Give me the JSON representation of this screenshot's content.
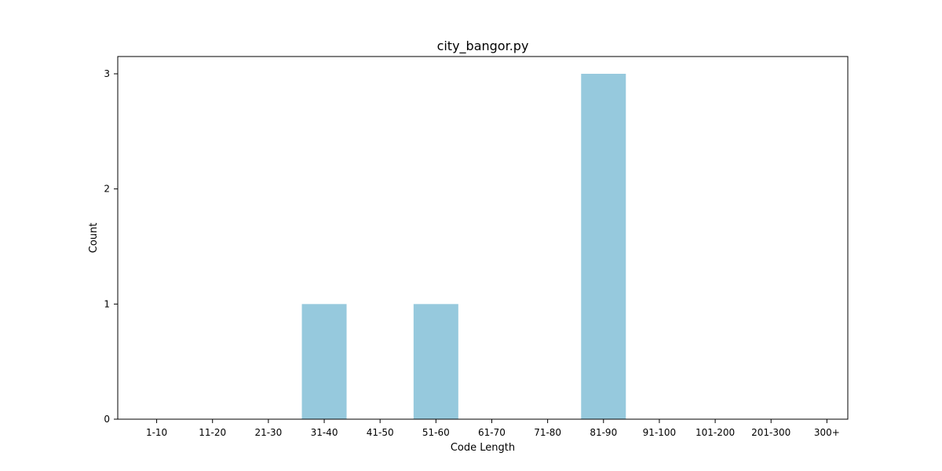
{
  "chart_data": {
    "type": "bar",
    "title": "city_bangor.py",
    "xlabel": "Code Length",
    "ylabel": "Count",
    "categories": [
      "1-10",
      "11-20",
      "21-30",
      "31-40",
      "41-50",
      "51-60",
      "61-70",
      "71-80",
      "81-90",
      "91-100",
      "101-200",
      "201-300",
      "300+"
    ],
    "values": [
      0,
      0,
      0,
      1,
      0,
      1,
      0,
      0,
      3,
      0,
      0,
      0,
      0
    ],
    "ylim": [
      0,
      3.15
    ],
    "yticks": [
      "0",
      "1",
      "2",
      "3"
    ],
    "grid": false,
    "legend": "none",
    "colors": {
      "bar": "#96c9dd",
      "axis": "#000000",
      "background": "#ffffff"
    }
  }
}
